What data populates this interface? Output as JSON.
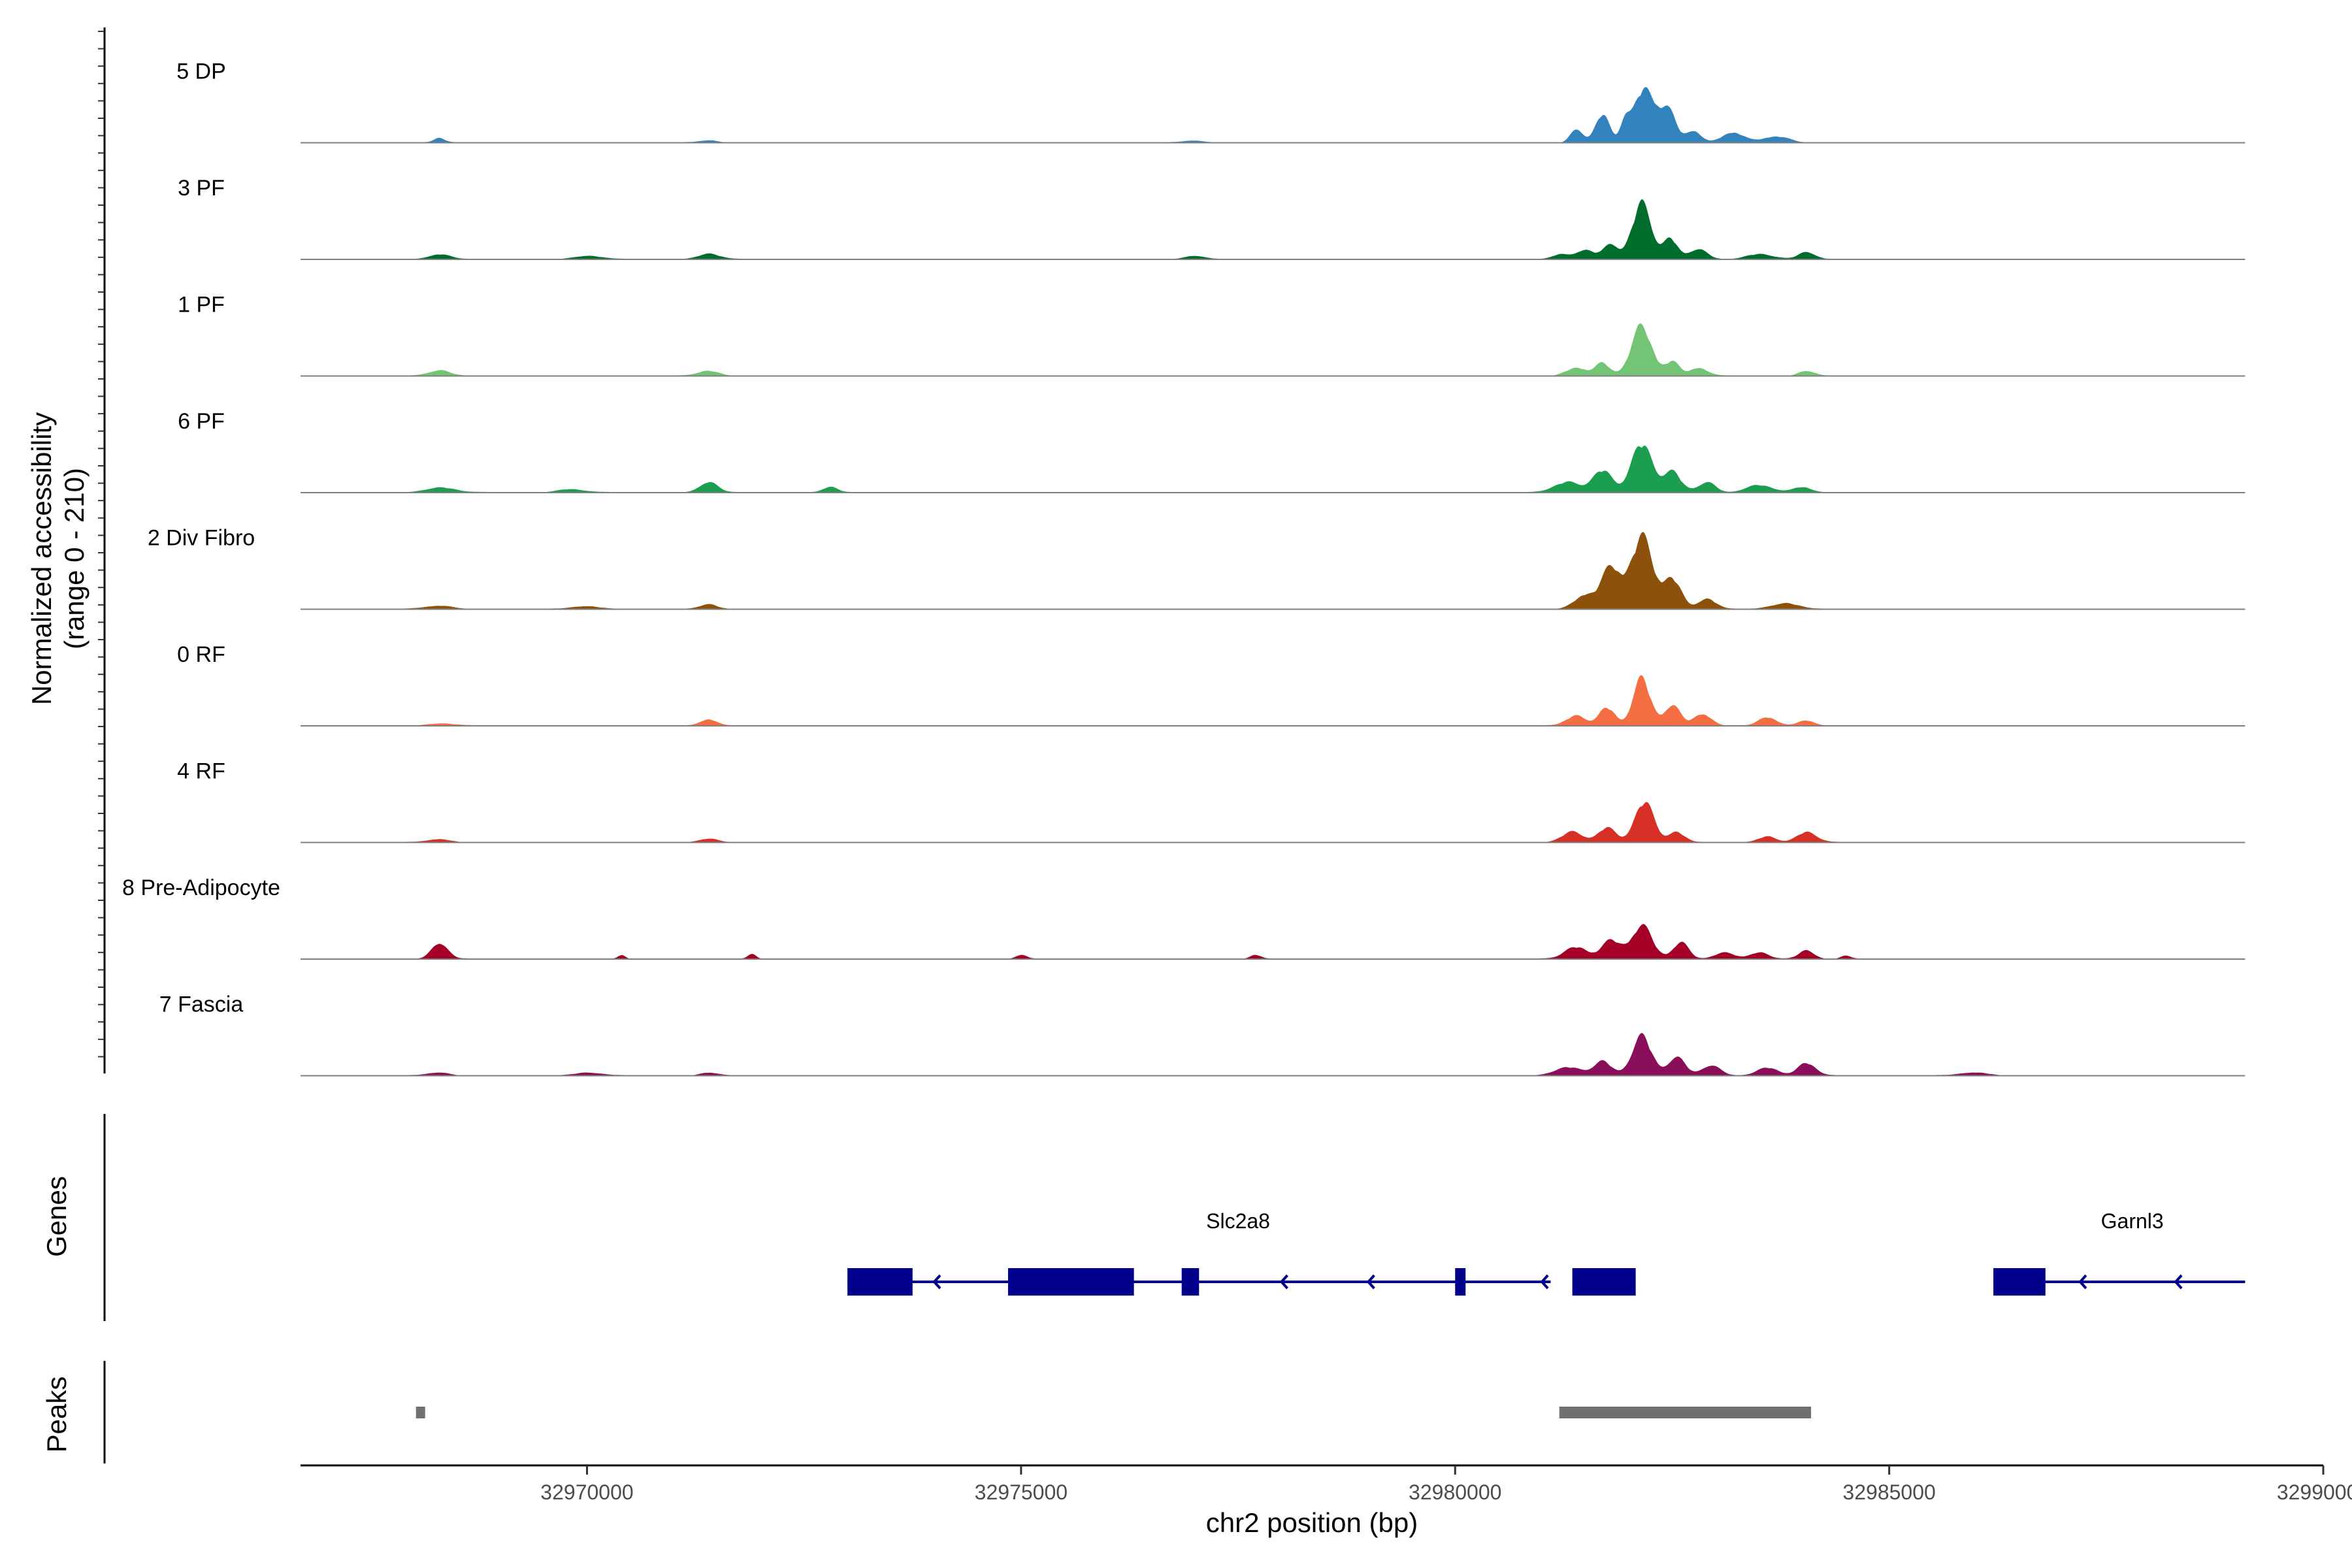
{
  "chart_data": {
    "type": "area",
    "title": "",
    "xlabel": "chr2 position (bp)",
    "ylabel_line1": "Normalized accessibility",
    "ylabel_line2": "(range 0 - 210)",
    "yrange": [
      0,
      210
    ],
    "xlim": [
      32966700,
      32990000
    ],
    "x_ticks": [
      32970000,
      32975000,
      32980000,
      32985000,
      32990000
    ],
    "x_tick_labels": [
      "32970000",
      "32975000",
      "32980000",
      "32985000",
      "32990000"
    ],
    "tracks": [
      {
        "name": "5 DP",
        "color": "#3182BD",
        "peaks": [
          [
            32968300,
            4,
            60
          ],
          [
            32981400,
            14,
            70
          ],
          [
            32981700,
            28,
            80
          ],
          [
            32981950,
            18,
            50
          ],
          [
            32982180,
            54,
            120
          ],
          [
            32982450,
            30,
            100
          ],
          [
            32982750,
            12,
            80
          ],
          [
            32983200,
            10,
            120
          ],
          [
            32983700,
            6,
            150
          ],
          [
            32971400,
            2,
            100
          ],
          [
            32977000,
            2,
            120
          ]
        ]
      },
      {
        "name": "3 PF",
        "color": "#006D2C",
        "peaks": [
          [
            32968300,
            5,
            120
          ],
          [
            32970000,
            3,
            150
          ],
          [
            32971400,
            5,
            120
          ],
          [
            32981200,
            4,
            80
          ],
          [
            32981500,
            9,
            120
          ],
          [
            32981800,
            15,
            80
          ],
          [
            32982150,
            55,
            110
          ],
          [
            32982480,
            20,
            80
          ],
          [
            32982800,
            10,
            100
          ],
          [
            32983500,
            5,
            150
          ],
          [
            32984050,
            7,
            90
          ],
          [
            32977000,
            3,
            100
          ]
        ]
      },
      {
        "name": "1 PF",
        "color": "#74C476",
        "peaks": [
          [
            32968300,
            5,
            120
          ],
          [
            32971400,
            5,
            120
          ],
          [
            32981400,
            8,
            120
          ],
          [
            32981700,
            12,
            80
          ],
          [
            32982150,
            48,
            120
          ],
          [
            32982500,
            14,
            80
          ],
          [
            32982800,
            8,
            100
          ],
          [
            32984050,
            5,
            90
          ]
        ]
      },
      {
        "name": "6 PF",
        "color": "#1B9E50",
        "peaks": [
          [
            32968300,
            5,
            160
          ],
          [
            32969800,
            3,
            150
          ],
          [
            32971400,
            10,
            100
          ],
          [
            32972800,
            5,
            80
          ],
          [
            32981300,
            10,
            150
          ],
          [
            32981700,
            22,
            110
          ],
          [
            32982150,
            48,
            120
          ],
          [
            32982500,
            20,
            100
          ],
          [
            32982900,
            10,
            100
          ],
          [
            32983500,
            7,
            150
          ],
          [
            32984000,
            5,
            100
          ]
        ]
      },
      {
        "name": "2 Div Fibro",
        "color": "#8C510A",
        "peaks": [
          [
            32968300,
            3,
            150
          ],
          [
            32970000,
            3,
            150
          ],
          [
            32971400,
            5,
            100
          ],
          [
            32981500,
            14,
            120
          ],
          [
            32981800,
            40,
            110
          ],
          [
            32982150,
            70,
            130
          ],
          [
            32982500,
            30,
            100
          ],
          [
            32982900,
            10,
            100
          ],
          [
            32983800,
            6,
            150
          ]
        ]
      },
      {
        "name": "0 RF",
        "color": "#F46D43",
        "peaks": [
          [
            32968300,
            2,
            150
          ],
          [
            32971400,
            6,
            90
          ],
          [
            32981400,
            10,
            110
          ],
          [
            32981750,
            18,
            90
          ],
          [
            32982150,
            46,
            100
          ],
          [
            32982500,
            20,
            90
          ],
          [
            32982850,
            12,
            100
          ],
          [
            32983600,
            8,
            100
          ],
          [
            32984050,
            5,
            90
          ]
        ]
      },
      {
        "name": "4 RF",
        "color": "#D73027",
        "peaks": [
          [
            32968300,
            3,
            120
          ],
          [
            32971400,
            4,
            100
          ],
          [
            32981350,
            10,
            120
          ],
          [
            32981750,
            14,
            100
          ],
          [
            32982180,
            40,
            110
          ],
          [
            32982550,
            10,
            90
          ],
          [
            32983600,
            6,
            100
          ],
          [
            32984050,
            10,
            110
          ]
        ]
      },
      {
        "name": "8 Pre-Adipocyte",
        "color": "#A50026",
        "peaks": [
          [
            32968300,
            16,
            90
          ],
          [
            32970400,
            4,
            40
          ],
          [
            32971900,
            5,
            50
          ],
          [
            32981400,
            12,
            130
          ],
          [
            32981800,
            18,
            110
          ],
          [
            32982150,
            32,
            120
          ],
          [
            32982600,
            16,
            90
          ],
          [
            32983100,
            6,
            120
          ],
          [
            32983500,
            6,
            100
          ],
          [
            32984050,
            8,
            90
          ],
          [
            32984500,
            3,
            60
          ],
          [
            32975000,
            4,
            60
          ],
          [
            32977700,
            4,
            60
          ]
        ]
      },
      {
        "name": "7 Fascia",
        "color": "#8B0E5A",
        "peaks": [
          [
            32968300,
            3,
            120
          ],
          [
            32970000,
            3,
            150
          ],
          [
            32971400,
            3,
            100
          ],
          [
            32981300,
            8,
            150
          ],
          [
            32981700,
            14,
            100
          ],
          [
            32982150,
            40,
            110
          ],
          [
            32982550,
            18,
            100
          ],
          [
            32982950,
            10,
            100
          ],
          [
            32983600,
            8,
            120
          ],
          [
            32984050,
            12,
            100
          ],
          [
            32986000,
            3,
            150
          ]
        ]
      }
    ],
    "genes_title": "Genes",
    "genes": [
      {
        "name": "Slc2a8",
        "label_x": 32977500,
        "start": 32973000,
        "end": 32981100,
        "exons": [
          [
            32973000,
            32973750
          ],
          [
            32974850,
            32976300
          ],
          [
            32976850,
            32977050
          ],
          [
            32980000,
            32980120
          ],
          [
            32981350,
            32982080
          ]
        ],
        "arrows": [
          32974000,
          32978000,
          32979000,
          32981000
        ]
      },
      {
        "name": "Garnl3",
        "label_x": 32987800,
        "start": 32986200,
        "end": 32989100,
        "exons": [
          [
            32986200,
            32986800
          ]
        ],
        "arrows": [
          32987200,
          32988300
        ]
      }
    ],
    "peaks_title": "Peaks",
    "peak_regions": [
      [
        32968030,
        32968100
      ],
      [
        32981200,
        32984100
      ]
    ]
  }
}
